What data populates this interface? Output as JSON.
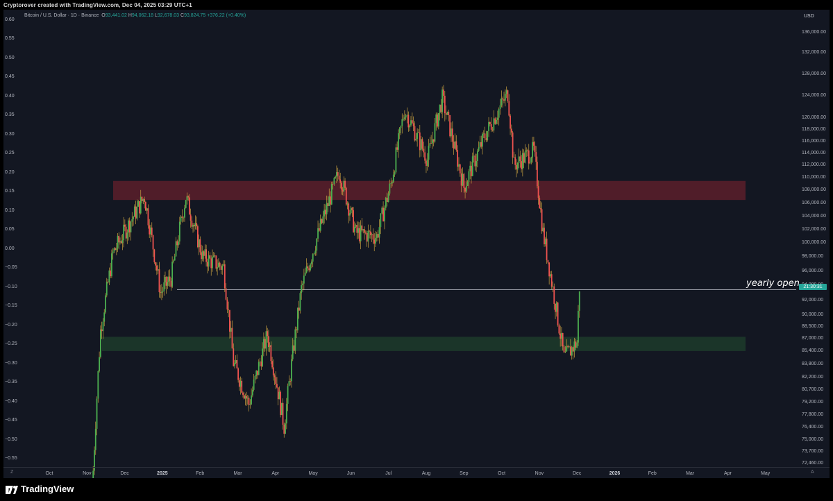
{
  "header": {
    "credit": "Cryptorover created with TradingView.com, Dec 04, 2025 03:29 UTC+1"
  },
  "legend": {
    "symbol": "Bitcoin / U.S. Dollar · 1D · Binance",
    "open_label": "O",
    "open": "93,441.02",
    "high_label": "H",
    "high": "94,062.18",
    "low_label": "L",
    "low": "92,678.03",
    "close_label": "C",
    "close": "93,824.75",
    "change": "+376.22 (+0.40%)"
  },
  "axes": {
    "currency": "USD",
    "left_ticks": [
      "0.60",
      "0.55",
      "0.50",
      "0.45",
      "0.40",
      "0.35",
      "0.30",
      "0.25",
      "0.20",
      "0.15",
      "0.10",
      "0.05",
      "0.00",
      "−0.05",
      "−0.10",
      "−0.15",
      "−0.20",
      "−0.25",
      "−0.30",
      "−0.35",
      "−0.40",
      "−0.45",
      "−0.50",
      "−0.55"
    ],
    "right_ticks": [
      "136,000.00",
      "132,000.00",
      "128,000.00",
      "124,000.00",
      "120,000.00",
      "118,000.00",
      "116,000.00",
      "114,000.00",
      "112,000.00",
      "110,000.00",
      "108,000.00",
      "106,000.00",
      "104,000.00",
      "102,000.00",
      "100,000.00",
      "98,000.00",
      "96,000.00",
      "94,000.00",
      "92,000.00",
      "90,000.00",
      "88,500.00",
      "87,000.00",
      "85,400.00",
      "83,800.00",
      "82,200.00",
      "80,700.00",
      "79,200.00",
      "77,800.00",
      "76,400.00",
      "75,000.00",
      "73,700.00",
      "72,460.00"
    ],
    "time_ticks": [
      "Oct",
      "Nov",
      "Dec",
      "2025",
      "Feb",
      "Mar",
      "Apr",
      "May",
      "Jun",
      "Jul",
      "Aug",
      "Sep",
      "Oct",
      "Nov",
      "Dec",
      "2026",
      "Feb",
      "Mar",
      "Apr",
      "May"
    ],
    "bold_ticks": [
      "2025",
      "2026"
    ],
    "z_button": "Z",
    "a_button": "A"
  },
  "annotations": {
    "yearly_open_label": "yearly open",
    "price_tag": "21:30:31"
  },
  "colors": {
    "background": "#131722",
    "up": "#4caf50",
    "down": "#ef5350",
    "wick": "#c8a040",
    "resistance_zone": "#5c1f2a",
    "support_zone": "#1d3b2a",
    "yearly_open_line": "#d1d4dc"
  },
  "footer": {
    "brand": "TradingView"
  },
  "chart_data": {
    "type": "candlestick",
    "symbol": "BTCUSD",
    "timeframe": "1D",
    "x": [
      "2024-11",
      "2024-12",
      "2025-01",
      "2025-02",
      "2025-03",
      "2025-04",
      "2025-05",
      "2025-06",
      "2025-07",
      "2025-08",
      "2025-09",
      "2025-10",
      "2025-11",
      "2025-12"
    ],
    "close_path": [
      {
        "date": "2024-11-05",
        "price": 69000
      },
      {
        "date": "2024-11-12",
        "price": 88000
      },
      {
        "date": "2024-11-22",
        "price": 98500
      },
      {
        "date": "2024-12-05",
        "price": 103000
      },
      {
        "date": "2024-12-17",
        "price": 107000
      },
      {
        "date": "2024-12-30",
        "price": 93000
      },
      {
        "date": "2025-01-08",
        "price": 95000
      },
      {
        "date": "2025-01-20",
        "price": 107000
      },
      {
        "date": "2025-02-03",
        "price": 98000
      },
      {
        "date": "2025-02-20",
        "price": 96500
      },
      {
        "date": "2025-02-28",
        "price": 84000
      },
      {
        "date": "2025-03-10",
        "price": 79000
      },
      {
        "date": "2025-03-25",
        "price": 87500
      },
      {
        "date": "2025-04-08",
        "price": 76500
      },
      {
        "date": "2025-04-22",
        "price": 93500
      },
      {
        "date": "2025-05-08",
        "price": 103000
      },
      {
        "date": "2025-05-22",
        "price": 111000
      },
      {
        "date": "2025-06-05",
        "price": 101500
      },
      {
        "date": "2025-06-22",
        "price": 101000
      },
      {
        "date": "2025-07-03",
        "price": 109000
      },
      {
        "date": "2025-07-14",
        "price": 121500
      },
      {
        "date": "2025-08-02",
        "price": 113000
      },
      {
        "date": "2025-08-14",
        "price": 123500
      },
      {
        "date": "2025-09-01",
        "price": 108500
      },
      {
        "date": "2025-09-18",
        "price": 117000
      },
      {
        "date": "2025-10-06",
        "price": 124500
      },
      {
        "date": "2025-10-11",
        "price": 112000
      },
      {
        "date": "2025-10-27",
        "price": 114500
      },
      {
        "date": "2025-11-04",
        "price": 101500
      },
      {
        "date": "2025-11-21",
        "price": 84500
      },
      {
        "date": "2025-12-01",
        "price": 86500
      },
      {
        "date": "2025-12-03",
        "price": 93800
      }
    ],
    "zones": [
      {
        "name": "resistance",
        "from": 106500,
        "to": 109500
      },
      {
        "name": "support",
        "from": 85400,
        "to": 87200
      }
    ],
    "lines": [
      {
        "name": "yearly open",
        "price": 93400
      }
    ],
    "left_axis_range": [
      -0.57,
      0.62
    ],
    "price_scale": "log",
    "grid": false
  }
}
